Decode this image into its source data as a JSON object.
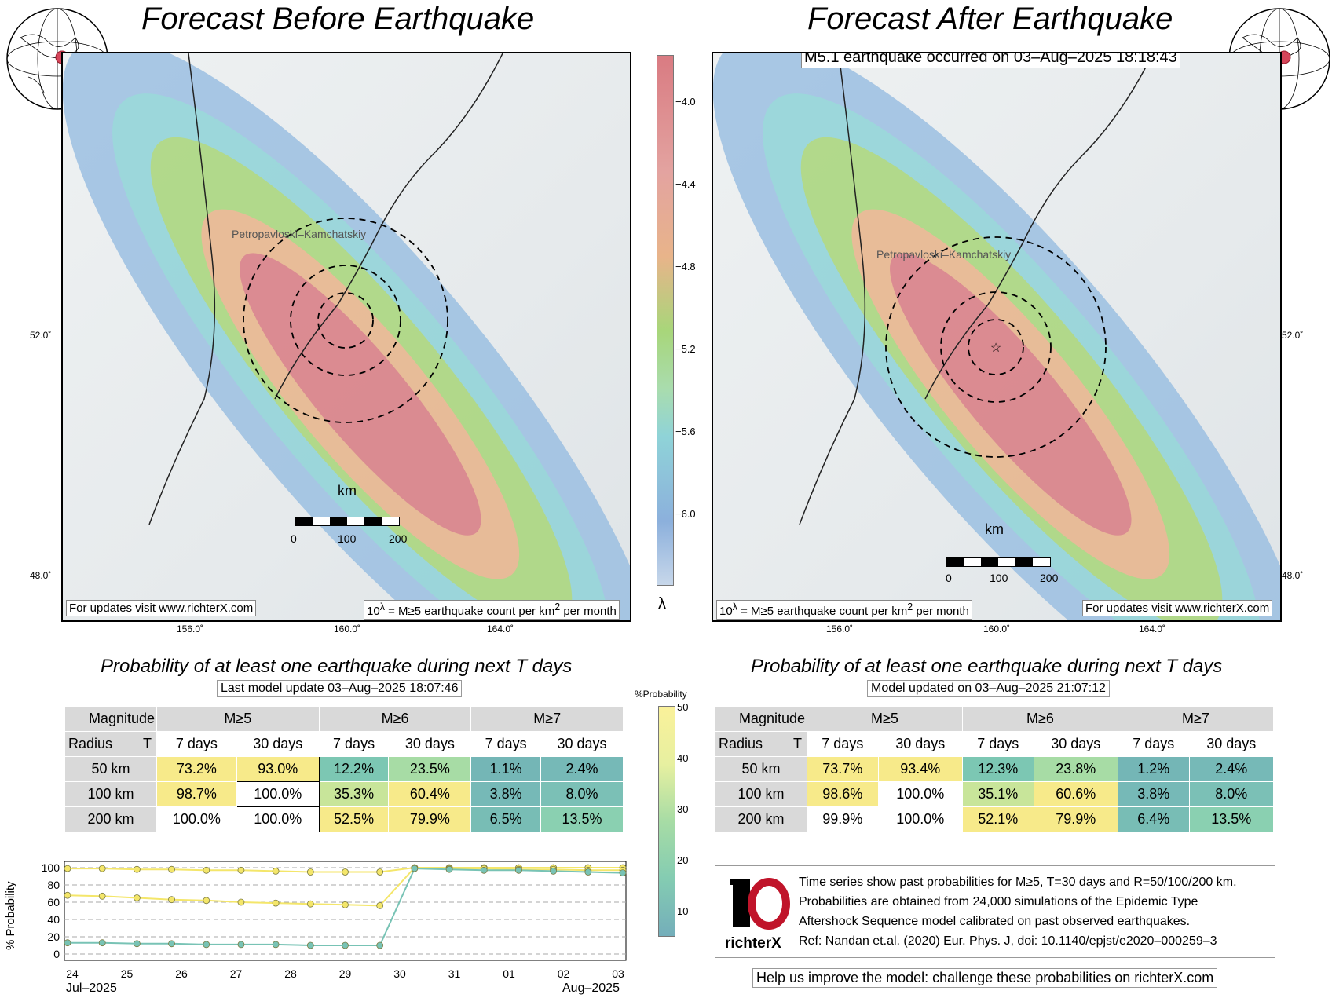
{
  "left": {
    "title": "Forecast Before Earthquake",
    "city": "Petropavloski–Kamchatskiy",
    "scale_label": "km",
    "scale_ticks": [
      "0",
      "100",
      "200"
    ],
    "note_url": "For updates visit www.richterX.com",
    "note_units_pre": "10",
    "note_units_sup": "λ",
    "note_units_post": " = M≥5 earthquake count per km",
    "note_units_sup2": "2",
    "note_units_end": " per month",
    "lat_ticks": [
      "52.0˚",
      "48.0˚"
    ],
    "lon_ticks": [
      "156.0˚",
      "160.0˚",
      "164.0˚"
    ]
  },
  "right": {
    "title": "Forecast After Earthquake",
    "event": "M5.1 earthquake occurred on 03–Aug–2025 18:18:43",
    "city": "Petropavloski–Kamchatskiy",
    "scale_label": "km",
    "scale_ticks": [
      "0",
      "100",
      "200"
    ],
    "note_url": "For updates visit www.richterX.com",
    "lat_ticks": [
      "52.0˚",
      "48.0˚"
    ],
    "lon_ticks": [
      "156.0˚",
      "160.0˚",
      "164.0˚"
    ]
  },
  "colorbar": {
    "ticks": [
      "−4.0",
      "−4.4",
      "−4.8",
      "−5.2",
      "−5.6",
      "−6.0"
    ],
    "label": "λ"
  },
  "prob_colorbar": {
    "label": "%Probability",
    "ticks": [
      "50",
      "40",
      "30",
      "20",
      "10"
    ]
  },
  "table_left": {
    "title": "Probability of at least one earthquake during next T days",
    "subtitle": "Last model update 03–Aug–2025 18:07:46",
    "corner_top": "Magnitude",
    "corner_left": "Radius",
    "corner_t": "T",
    "magnitudes": [
      "M≥5",
      "M≥6",
      "M≥7"
    ],
    "periods": [
      "7 days",
      "30 days",
      "7 days",
      "30 days",
      "7 days",
      "30 days"
    ],
    "rows": [
      {
        "radius": "50 km",
        "values": [
          "73.2%",
          "93.0%",
          "12.2%",
          "23.5%",
          "1.1%",
          "2.4%"
        ]
      },
      {
        "radius": "100 km",
        "values": [
          "98.7%",
          "100.0%",
          "35.3%",
          "60.4%",
          "3.8%",
          "8.0%"
        ]
      },
      {
        "radius": "200 km",
        "values": [
          "100.0%",
          "100.0%",
          "52.5%",
          "79.9%",
          "6.5%",
          "13.5%"
        ]
      }
    ]
  },
  "table_right": {
    "title": "Probability of at least one earthquake during next T days",
    "subtitle": "Model updated on 03–Aug–2025 21:07:12",
    "corner_top": "Magnitude",
    "corner_left": "Radius",
    "corner_t": "T",
    "magnitudes": [
      "M≥5",
      "M≥6",
      "M≥7"
    ],
    "periods": [
      "7 days",
      "30 days",
      "7 days",
      "30 days",
      "7 days",
      "30 days"
    ],
    "rows": [
      {
        "radius": "50 km",
        "values": [
          "73.7%",
          "93.4%",
          "12.3%",
          "23.8%",
          "1.2%",
          "2.4%"
        ]
      },
      {
        "radius": "100 km",
        "values": [
          "98.6%",
          "100.0%",
          "35.1%",
          "60.6%",
          "3.8%",
          "8.0%"
        ]
      },
      {
        "radius": "200 km",
        "values": [
          "99.9%",
          "100.0%",
          "52.1%",
          "79.9%",
          "6.4%",
          "13.5%"
        ]
      }
    ]
  },
  "timeseries": {
    "ylabel": "% Probability",
    "yticks": [
      "100",
      "80",
      "60",
      "40",
      "20",
      "0"
    ],
    "xticks": [
      "24",
      "25",
      "26",
      "27",
      "28",
      "29",
      "30",
      "31",
      "01",
      "02",
      "03"
    ],
    "x_month_left": "Jul–2025",
    "x_month_right": "Aug–2025"
  },
  "chart_data": {
    "type": "line",
    "ylabel": "% Probability",
    "ylim": [
      0,
      100
    ],
    "x_start": "2025-07-23",
    "x_end": "2025-08-03",
    "series": [
      {
        "values": [
          99,
          99,
          98,
          98,
          97,
          97,
          96,
          95,
          95,
          95,
          100,
          100,
          100,
          100,
          100,
          100,
          100
        ]
      },
      {
        "values": [
          68,
          67,
          65,
          63,
          62,
          60,
          59,
          58,
          57,
          56,
          100,
          99,
          99,
          98,
          98,
          97,
          97
        ]
      },
      {
        "values": [
          13,
          13,
          12,
          12,
          11,
          11,
          11,
          10,
          10,
          10,
          99,
          98,
          97,
          97,
          96,
          95,
          94
        ]
      }
    ]
  },
  "info": {
    "logo_text": "richterX",
    "lines": [
      "Time series show past probabilities for M≥5, T=30 days and R=50/100/200 km.",
      "Probabilities are obtained from 24,000 simulations of the Epidemic Type",
      "Aftershock Sequence model calibrated on past observed earthquakes.",
      "Ref: Nandan et.al. (2020) Eur. Phys. J, doi: 10.1140/epjst/e2020–000259–3"
    ],
    "help": "Help us improve the model: challenge these probabilities on richterX.com"
  },
  "colors": {
    "red": "#d97b82",
    "orange": "#e8b48a",
    "green": "#a8d67a",
    "cyan": "#8fd3d8",
    "blue": "#8cb0dc",
    "yellow": "#f7ea8a",
    "teal": "#78c3b5"
  }
}
